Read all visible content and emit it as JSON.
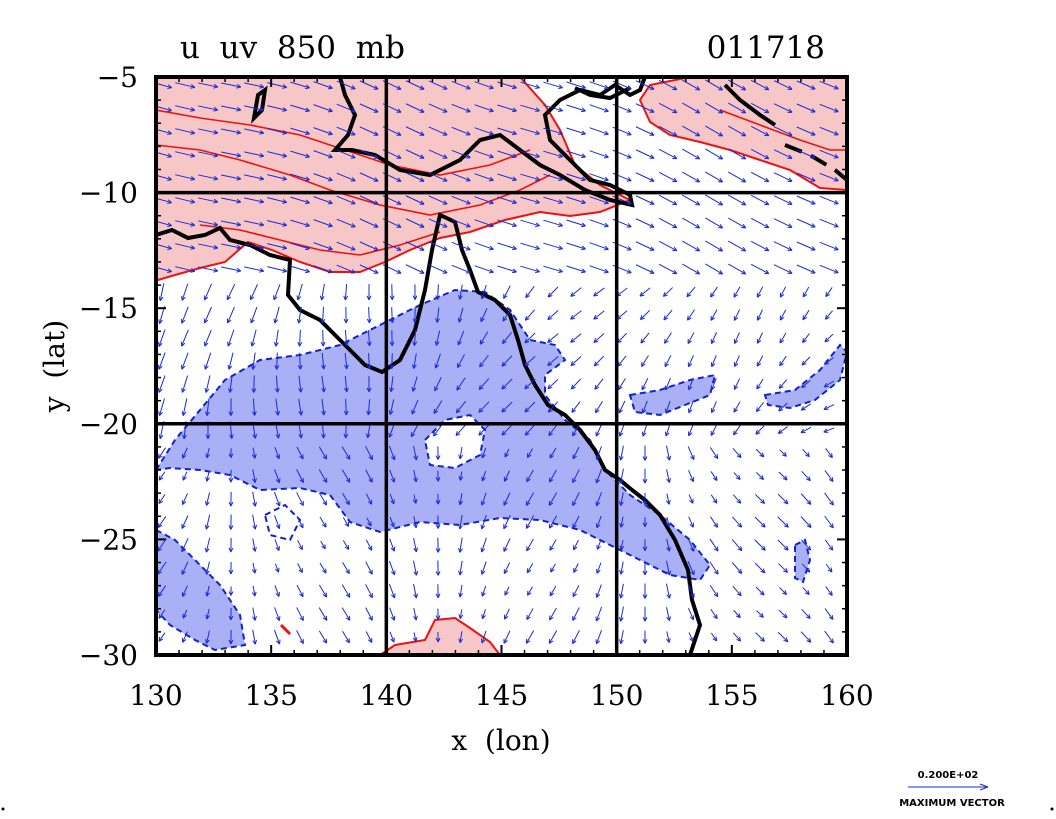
{
  "chart_data": {
    "type": "vector-contour-map",
    "title_left": "u  uv  850  mb",
    "title_right": "011718",
    "xlabel": "x  (lon)",
    "ylabel": "y  (lat)",
    "xlim": [
      130,
      160
    ],
    "ylim": [
      -30,
      -5
    ],
    "x_ticks": [
      130,
      135,
      140,
      145,
      150,
      155,
      160
    ],
    "y_ticks": [
      -5,
      -10,
      -15,
      -20,
      -25,
      -30
    ],
    "x_tick_labels": [
      "130",
      "135",
      "140",
      "145",
      "150",
      "155",
      "160"
    ],
    "y_tick_labels": [
      "−5",
      "−10",
      "−15",
      "−20",
      "−25",
      "−30"
    ],
    "grid_lines": {
      "lon": [
        140,
        150
      ],
      "lat": [
        -10,
        -20
      ]
    },
    "grid": true,
    "positive_region_color": "#f7c6c6",
    "positive_contour_color": "#ee1111",
    "negative_region_color": "#aab0f5",
    "negative_contour_color": "#1122cc",
    "vector_color": "#1b2bd6",
    "coastline_color": "#000000",
    "reference_vector": {
      "value_label": "0.200E+02",
      "caption": "MAXIMUM VECTOR"
    }
  }
}
